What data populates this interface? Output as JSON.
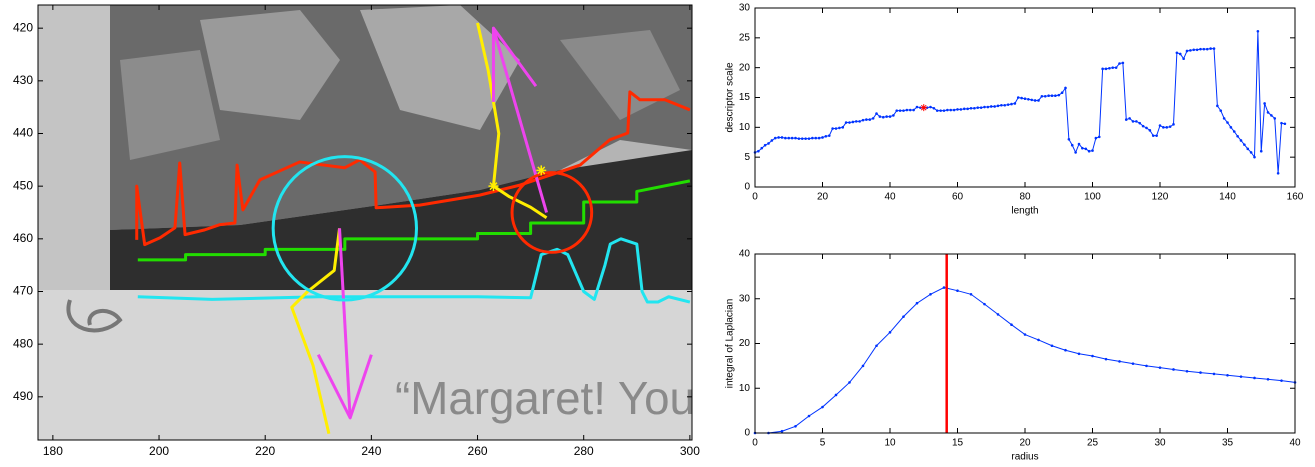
{
  "chart_data": [
    {
      "type": "overlay",
      "xlim": [
        177.2,
        300.4
      ],
      "ylim": [
        415.6,
        498.2
      ],
      "yreverse": true,
      "xticks": [
        180,
        200,
        220,
        240,
        260,
        280,
        300
      ],
      "yticks": [
        420,
        430,
        440,
        450,
        460,
        470,
        480,
        490
      ],
      "annotation": "“Margaret! You",
      "series": [
        {
          "color": "#ff2a00",
          "x": [
            195.8,
            195.8,
            197.3,
            200.2,
            203.0,
            203.9,
            204.9,
            208.6,
            211.5,
            214.3,
            214.7,
            215.8,
            219.0,
            226.5,
            235.0,
            237.8,
            240.7,
            240.9,
            249.1,
            260.4,
            268.0,
            275.5,
            279.3,
            284.9,
            288.3,
            288.7,
            290.6,
            295.3,
            300.0
          ],
          "y": [
            460.2,
            450.0,
            461.1,
            459.8,
            457.9,
            445.6,
            459.2,
            458.3,
            457.3,
            457.0,
            446.0,
            454.5,
            448.8,
            445.4,
            446.5,
            445.0,
            447.3,
            454.1,
            453.6,
            451.7,
            449.8,
            447.3,
            446.0,
            441.2,
            439.9,
            432.1,
            433.6,
            433.6,
            435.5
          ]
        },
        {
          "color": "#22dd00",
          "x": [
            196,
            205,
            205,
            220,
            220,
            235,
            235,
            260,
            260,
            270,
            270,
            280,
            280,
            290,
            290,
            300
          ],
          "y": [
            464,
            464,
            463,
            463,
            462,
            462,
            460,
            460,
            459,
            459,
            457,
            457,
            453,
            453,
            451,
            449
          ]
        },
        {
          "color": "#22e5f0",
          "x": [
            196,
            210,
            230,
            260,
            270,
            272,
            275,
            277,
            280,
            282,
            284,
            285,
            287,
            290,
            291,
            292,
            294,
            296,
            300
          ],
          "y": [
            471,
            471.5,
            471,
            471,
            471.2,
            463,
            462,
            463,
            470,
            471.5,
            465,
            461,
            460,
            461,
            470,
            472,
            472,
            471,
            472
          ]
        },
        {
          "color": "#ffee00",
          "x": [
            260,
            262,
            264,
            263,
            266,
            270,
            273
          ],
          "y": [
            419,
            428,
            440,
            450,
            452,
            454,
            456
          ]
        },
        {
          "color": "#ffee00",
          "x": [
            234,
            233,
            228,
            225,
            229,
            232
          ],
          "y": [
            458,
            466,
            470,
            473,
            484,
            497
          ]
        },
        {
          "color": "#ee44ee",
          "x": [
            273,
            263
          ],
          "y": [
            455,
            420
          ]
        },
        {
          "color": "#ee44ee",
          "x": [
            263,
            263,
            271
          ],
          "y": [
            434,
            420,
            431
          ]
        },
        {
          "color": "#ee44ee",
          "x": [
            234,
            236
          ],
          "y": [
            458,
            494
          ]
        },
        {
          "color": "#ee44ee",
          "x": [
            230,
            236,
            240
          ],
          "y": [
            482,
            494,
            482
          ]
        }
      ],
      "circles": [
        {
          "color": "#22e5f0",
          "x": 235,
          "y": 458,
          "r": 13.5
        },
        {
          "color": "#ff2a00",
          "x": 274,
          "y": 455,
          "r": 7.5
        }
      ],
      "stars": {
        "color": "#ffee00",
        "x": [
          263,
          272
        ],
        "y": [
          450,
          447
        ]
      }
    },
    {
      "type": "line",
      "xlabel": "length",
      "ylabel": "descriptor scale",
      "xlim": [
        0,
        160
      ],
      "ylim": [
        0,
        30
      ],
      "xticks": [
        0,
        20,
        40,
        60,
        80,
        100,
        120,
        140,
        160
      ],
      "yticks": [
        0,
        5,
        10,
        15,
        20,
        25,
        30
      ],
      "series": [
        {
          "color": "#0033ff",
          "markers": true,
          "x": [
            0,
            1,
            2,
            3,
            4,
            5,
            6,
            7,
            8,
            9,
            10,
            11,
            12,
            13,
            14,
            15,
            16,
            17,
            18,
            19,
            20,
            21,
            22,
            23,
            24,
            25,
            26,
            27,
            28,
            29,
            30,
            31,
            32,
            33,
            34,
            35,
            36,
            37,
            38,
            39,
            40,
            41,
            42,
            43,
            44,
            45,
            46,
            47,
            48,
            49,
            50,
            51,
            52,
            53,
            54,
            55,
            56,
            57,
            58,
            59,
            60,
            61,
            62,
            63,
            64,
            65,
            66,
            67,
            68,
            69,
            70,
            71,
            72,
            73,
            74,
            75,
            76,
            77,
            78,
            79,
            80,
            81,
            82,
            83,
            84,
            85,
            86,
            87,
            88,
            89,
            90,
            91,
            92,
            93,
            94,
            95,
            96,
            97,
            98,
            99,
            100,
            101,
            102,
            103,
            104,
            105,
            106,
            107,
            108,
            109,
            110,
            111,
            112,
            113,
            114,
            115,
            116,
            117,
            118,
            119,
            120,
            121,
            122,
            123,
            124,
            125,
            126,
            127,
            128,
            129,
            130,
            131,
            132,
            133,
            134,
            135,
            136,
            137,
            138,
            139,
            140,
            141,
            142,
            143,
            144,
            145,
            146,
            147,
            148,
            149,
            150,
            151,
            152,
            153,
            154,
            155,
            156,
            157
          ],
          "values": [
            5.8,
            6,
            6.5,
            7,
            7.3,
            7.8,
            8.2,
            8.3,
            8.3,
            8.2,
            8.2,
            8.2,
            8.2,
            8.1,
            8.1,
            8.1,
            8.1,
            8.2,
            8.2,
            8.2,
            8.3,
            8.5,
            8.6,
            9.8,
            9.8,
            9.9,
            10,
            10.8,
            10.8,
            10.9,
            11,
            11,
            11.2,
            11.3,
            11.3,
            11.5,
            12.3,
            11.8,
            11.7,
            11.8,
            11.8,
            12,
            12.8,
            12.8,
            12.8,
            12.9,
            12.9,
            12.9,
            13.4,
            13.3,
            13.3,
            13.3,
            13.4,
            13.2,
            12.8,
            12.8,
            12.8,
            12.9,
            12.9,
            12.9,
            13,
            13,
            13.1,
            13.1,
            13.2,
            13.2,
            13.3,
            13.3,
            13.4,
            13.4,
            13.5,
            13.5,
            13.6,
            13.7,
            13.7,
            13.8,
            13.9,
            14,
            15,
            14.9,
            14.8,
            14.7,
            14.6,
            14.5,
            14.5,
            15.2,
            15.2,
            15.3,
            15.3,
            15.3,
            15.4,
            15.8,
            16.6,
            8,
            7,
            5.8,
            7.2,
            6.5,
            6.4,
            6,
            6.1,
            8.2,
            8.4,
            19.8,
            19.8,
            19.9,
            20,
            20,
            20.7,
            20.8,
            11.3,
            11.5,
            11,
            11,
            10.7,
            10.2,
            9.9,
            9.5,
            8.6,
            8.6,
            10.3,
            10,
            10,
            10.1,
            10.5,
            22.5,
            22.3,
            21.5,
            22.8,
            22.9,
            23,
            23,
            23.1,
            23.1,
            23.1,
            23.2,
            23.2,
            13.6,
            12.8,
            11.5,
            10.8,
            10,
            9.3,
            8.5,
            7.8,
            7.1,
            6.4,
            5.8,
            5,
            26.1,
            6,
            14,
            12.5,
            12,
            11.5,
            2.3,
            10.7,
            10.6
          ]
        }
      ],
      "highlight": {
        "color": "#ff0000",
        "x": 50,
        "y": 13.3
      }
    },
    {
      "type": "line",
      "xlabel": "radius",
      "ylabel": "integral of Laplacian",
      "xlim": [
        0,
        40
      ],
      "ylim": [
        0,
        40
      ],
      "xticks": [
        0,
        5,
        10,
        15,
        20,
        25,
        30,
        35,
        40
      ],
      "yticks": [
        0,
        10,
        20,
        30,
        40
      ],
      "series": [
        {
          "color": "#0033ff",
          "markers": true,
          "x": [
            0,
            1,
            2,
            3,
            4,
            5,
            6,
            7,
            8,
            9,
            10,
            11,
            12,
            13,
            14,
            15,
            16,
            17,
            18,
            19,
            20,
            21,
            22,
            23,
            24,
            25,
            26,
            27,
            28,
            29,
            30,
            31,
            32,
            33,
            34,
            35,
            36,
            37,
            38,
            39,
            40
          ],
          "values": [
            0,
            0,
            0.4,
            1.5,
            3.8,
            5.8,
            8.5,
            11.3,
            15,
            19.5,
            22.5,
            26,
            29,
            31,
            32.5,
            31.8,
            31,
            28.8,
            26.5,
            24.2,
            22,
            20.8,
            19.5,
            18.5,
            17.7,
            17.2,
            16.5,
            16,
            15.5,
            15,
            14.6,
            14.2,
            13.8,
            13.5,
            13.2,
            12.9,
            12.6,
            12.3,
            12,
            11.7,
            11.3
          ]
        }
      ],
      "vline": {
        "color": "#ff0000",
        "x": 14.2
      }
    }
  ]
}
